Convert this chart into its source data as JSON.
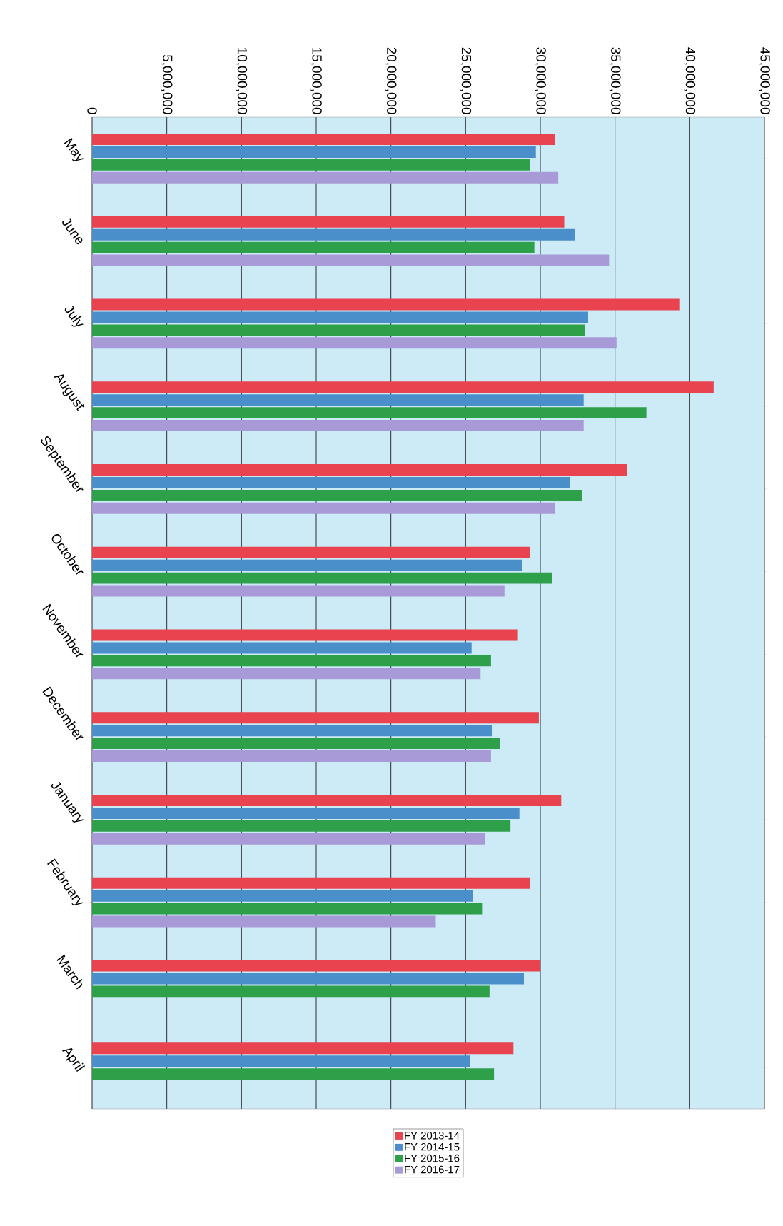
{
  "chart_data": {
    "type": "bar",
    "orientation": "horizontal",
    "categories": [
      "May",
      "June",
      "July",
      "August",
      "September",
      "October",
      "November",
      "December",
      "January",
      "February",
      "March",
      "April"
    ],
    "series": [
      {
        "name": "FY 2013-14",
        "color": "#e8434f",
        "values": [
          31000000,
          31600000,
          39300000,
          41600000,
          35800000,
          29300000,
          28500000,
          29900000,
          31400000,
          29300000,
          30000000,
          28200000
        ]
      },
      {
        "name": "FY 2014-15",
        "color": "#4a8fc9",
        "values": [
          29700000,
          32300000,
          33200000,
          32900000,
          32000000,
          28800000,
          25400000,
          26800000,
          28600000,
          25500000,
          28900000,
          25300000
        ]
      },
      {
        "name": "FY 2015-16",
        "color": "#2ea04a",
        "values": [
          29300000,
          29600000,
          33000000,
          37100000,
          32800000,
          30800000,
          26700000,
          27300000,
          28000000,
          26100000,
          26600000,
          26900000
        ]
      },
      {
        "name": "FY 2016-17",
        "color": "#a89ad6",
        "values": [
          31200000,
          34600000,
          35100000,
          32900000,
          31000000,
          27600000,
          26000000,
          26700000,
          26300000,
          23000000,
          null,
          null
        ]
      }
    ],
    "xlim": [
      0,
      45000000
    ],
    "xticks": [
      0,
      {
        "value": 5000000,
        "label": "5,000,000"
      },
      {
        "value": 10000000,
        "label": "10,000,000"
      },
      {
        "value": 15000000,
        "label": "15,000,000"
      },
      {
        "value": 20000000,
        "label": "20,000,000"
      },
      {
        "value": 25000000,
        "label": "25,000,000"
      },
      {
        "value": 30000000,
        "label": "30,000,000"
      },
      {
        "value": 35000000,
        "label": "35,000,000"
      },
      {
        "value": 40000000,
        "label": "40,000,000"
      },
      {
        "value": 45000000,
        "label": "45,000,000"
      }
    ],
    "grid": "x",
    "legend": "bottom"
  }
}
